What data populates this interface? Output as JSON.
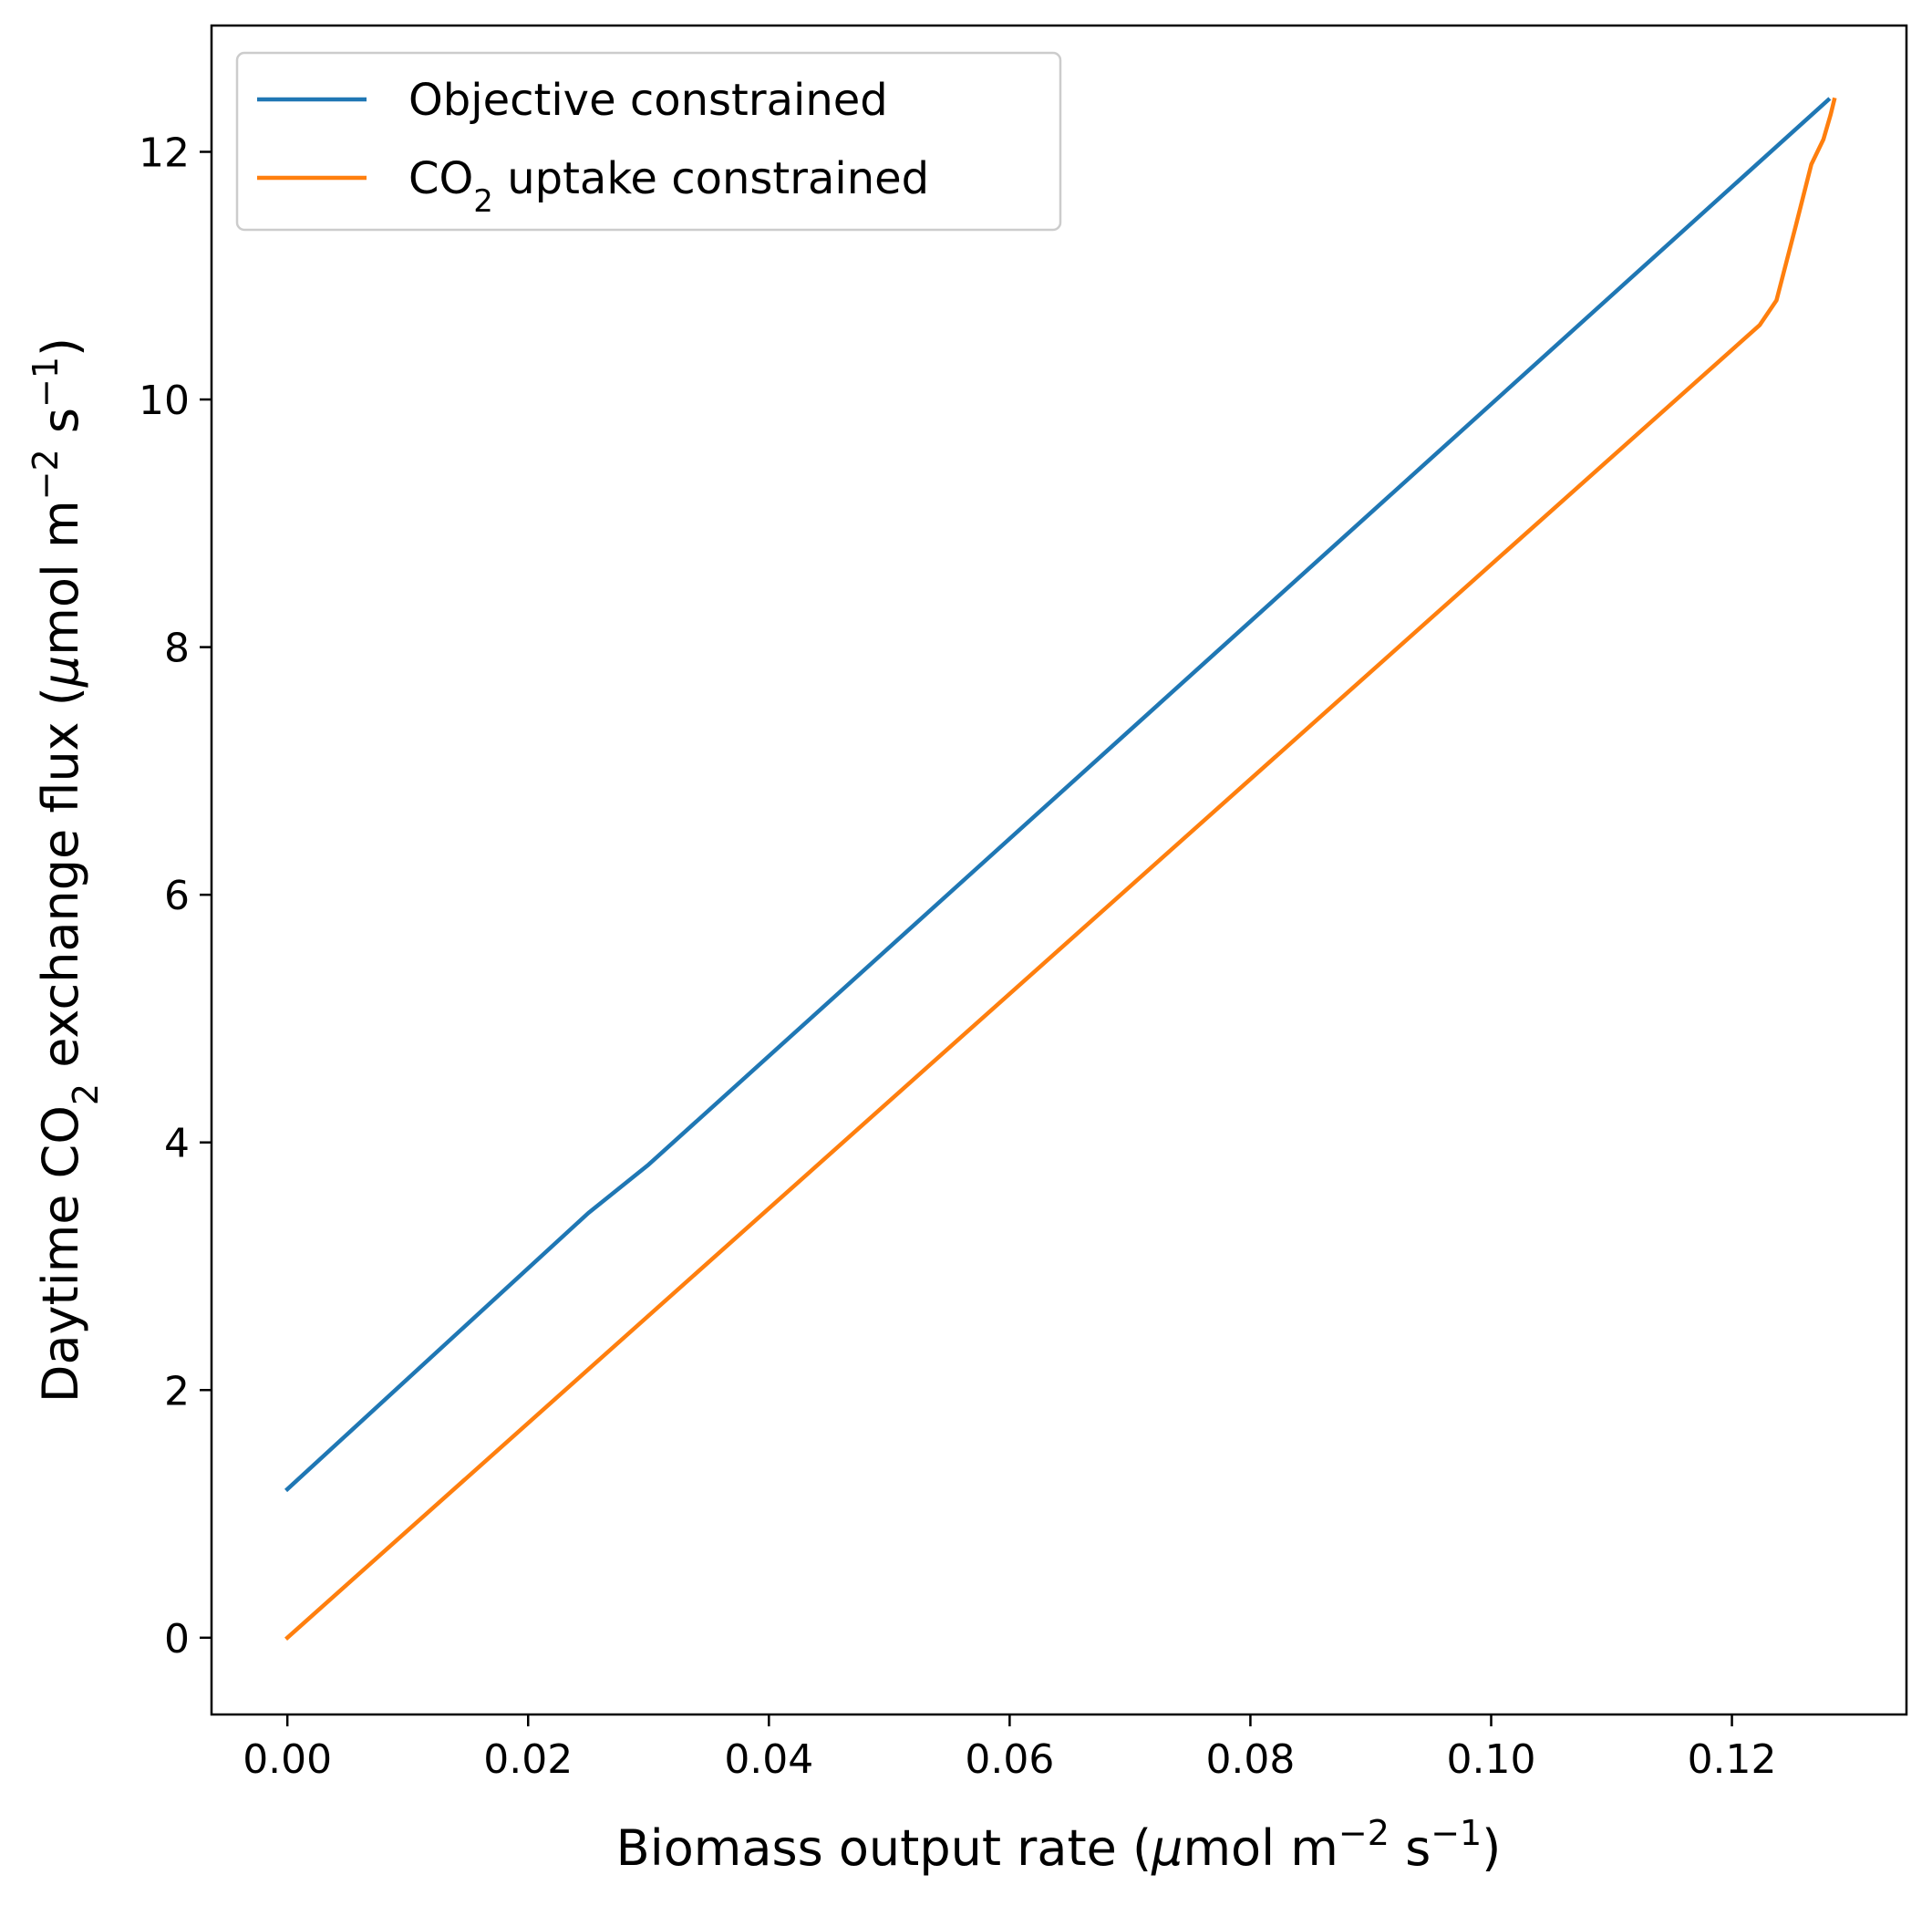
{
  "chart_data": {
    "type": "line",
    "xlabel": {
      "pre": "Biomass output rate (",
      "mu": "μ",
      "mid": "mol m",
      "sup1": "−2",
      "mid2": " s",
      "sup2": "−1",
      "post": ")"
    },
    "ylabel": {
      "pre": "Daytime CO",
      "sub": "2",
      "mid": " exchange flux (",
      "mu": "μ",
      "mid2": "mol m",
      "sup1": "−2",
      "mid3": " s",
      "sup2": "−1",
      "post": ")"
    },
    "xlim": [
      -0.0063,
      0.1345
    ],
    "ylim": [
      -0.62,
      13.02
    ],
    "x_ticks": [
      "0.00",
      "0.02",
      "0.04",
      "0.06",
      "0.08",
      "0.10",
      "0.12"
    ],
    "x_tick_values": [
      0.0,
      0.02,
      0.04,
      0.06,
      0.08,
      0.1,
      0.12
    ],
    "y_ticks": [
      "0",
      "2",
      "4",
      "6",
      "8",
      "10",
      "12"
    ],
    "y_tick_values": [
      0,
      2,
      4,
      6,
      8,
      10,
      12
    ],
    "grid": false,
    "legend_position": "top-left",
    "series": [
      {
        "name": "Objective constrained",
        "color": "#1f77b4",
        "x": [
          0.0,
          0.025,
          0.03,
          0.128
        ],
        "y": [
          1.2,
          3.43,
          3.82,
          12.42
        ]
      },
      {
        "name_pre": "CO",
        "name_sub": "2",
        "name_post": " uptake constrained",
        "color": "#ff7f0e",
        "x": [
          0.0,
          0.1223,
          0.1237,
          0.1253,
          0.1266,
          0.1276,
          0.1282,
          0.1285
        ],
        "y": [
          0.0,
          10.6,
          10.8,
          11.4,
          11.9,
          12.1,
          12.3,
          12.42
        ]
      }
    ]
  }
}
